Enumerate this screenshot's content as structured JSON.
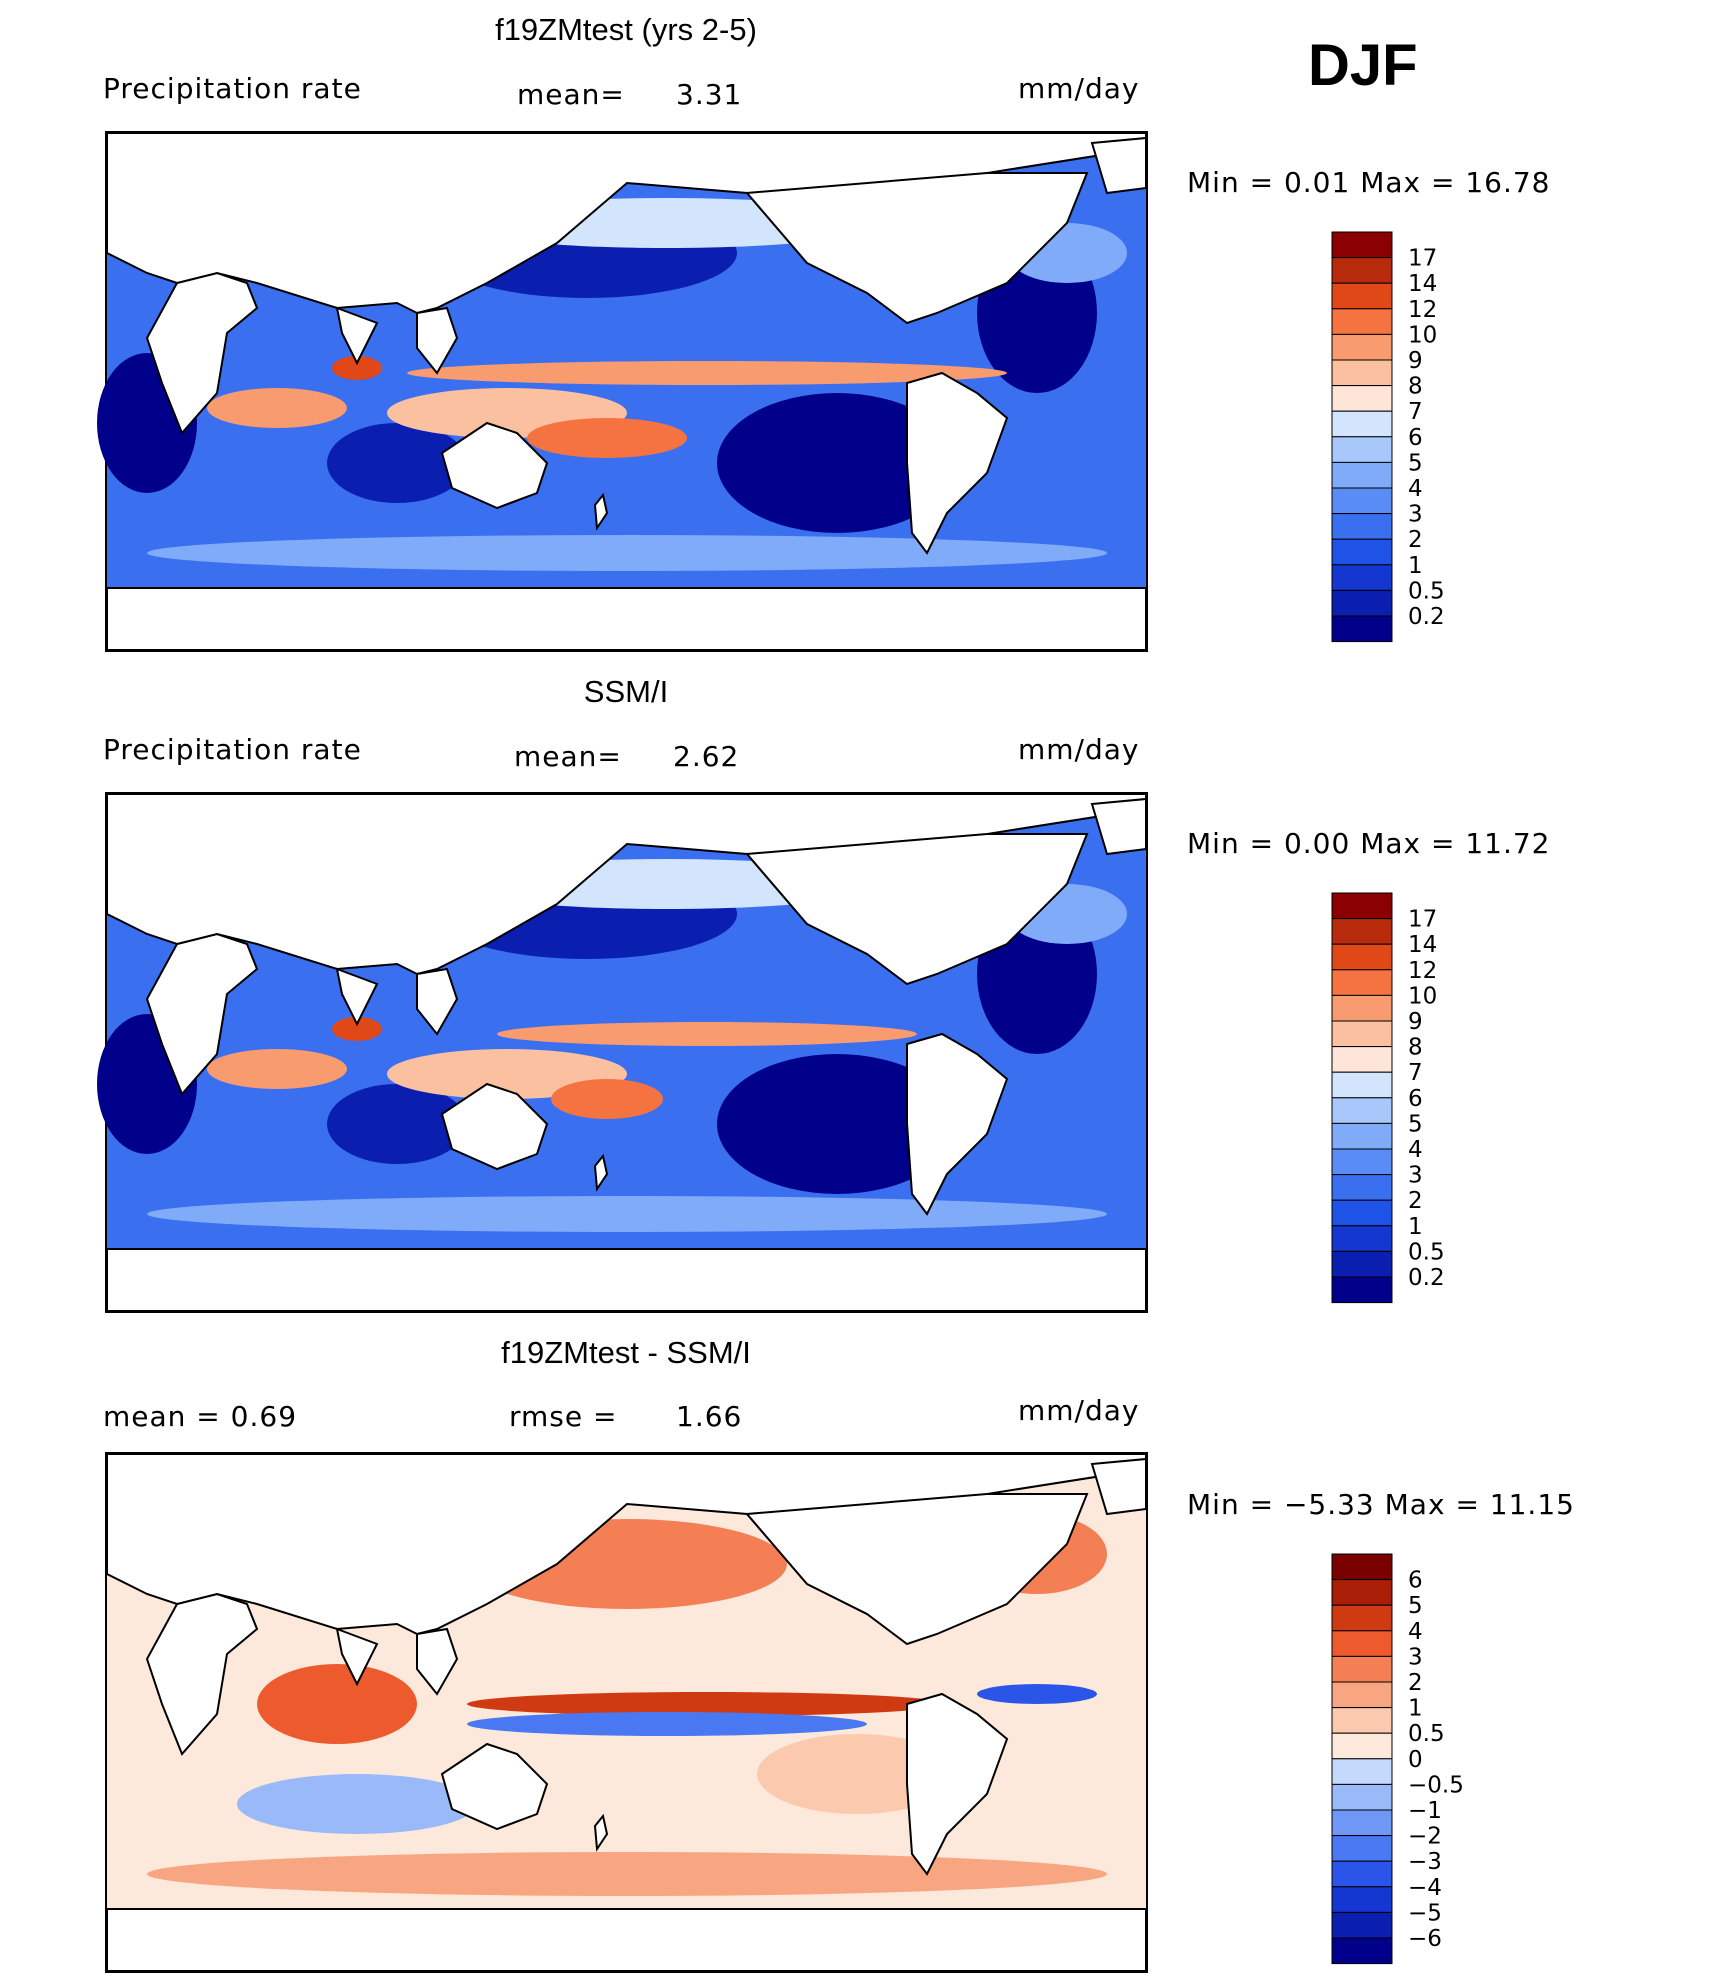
{
  "season": "DJF",
  "panels": [
    {
      "id": "model",
      "title": "f19ZMtest (yrs 2-5)",
      "left_label": "Precipitation rate",
      "center_label": "mean=",
      "center_value": "3.31",
      "units": "mm/day",
      "min_max": "Min =     0.01  Max =    16.78",
      "scale": "precip",
      "colorbar_labels": [
        "17",
        "14",
        "12",
        "10",
        "9",
        "8",
        "7",
        "6",
        "5",
        "4",
        "3",
        "2",
        "1",
        "0.5",
        "0.2"
      ]
    },
    {
      "id": "obs",
      "title": "SSM/I",
      "left_label": "Precipitation rate",
      "center_label": "mean=",
      "center_value": "2.62",
      "units": "mm/day",
      "min_max": "Min =     0.00  Max =    11.72",
      "scale": "precip",
      "colorbar_labels": [
        "17",
        "14",
        "12",
        "10",
        "9",
        "8",
        "7",
        "6",
        "5",
        "4",
        "3",
        "2",
        "1",
        "0.5",
        "0.2"
      ]
    },
    {
      "id": "diff",
      "title": "f19ZMtest - SSM/I",
      "left_label": "mean =     0.69",
      "center_label": "rmse =",
      "center_value": "1.66",
      "units": "mm/day",
      "min_max": "Min =   −5.33  Max =    11.15",
      "scale": "diff",
      "colorbar_labels": [
        "6",
        "5",
        "4",
        "3",
        "2",
        "1",
        "0.5",
        "0",
        "−0.5",
        "−1",
        "−2",
        "−3",
        "−4",
        "−5",
        "−6"
      ]
    }
  ],
  "colors": {
    "precip": [
      "#00008b",
      "#0a1fb0",
      "#1437d2",
      "#1f52e6",
      "#3a6ff0",
      "#5a8cf5",
      "#80abf8",
      "#a8c8fb",
      "#d2e5fd",
      "#fde6d8",
      "#fbc0a0",
      "#f89c70",
      "#f47340",
      "#e04818",
      "#b82a0c",
      "#8b0000"
    ],
    "diff": [
      "#00008b",
      "#0a1fb0",
      "#1437d2",
      "#2a55e8",
      "#4a78f2",
      "#6f98f6",
      "#9ab9f9",
      "#c5d9fc",
      "#fde8dc",
      "#fbc9ae",
      "#f8a682",
      "#f47f55",
      "#ec5a2e",
      "#d03a12",
      "#a81e06",
      "#7a0000"
    ]
  }
}
